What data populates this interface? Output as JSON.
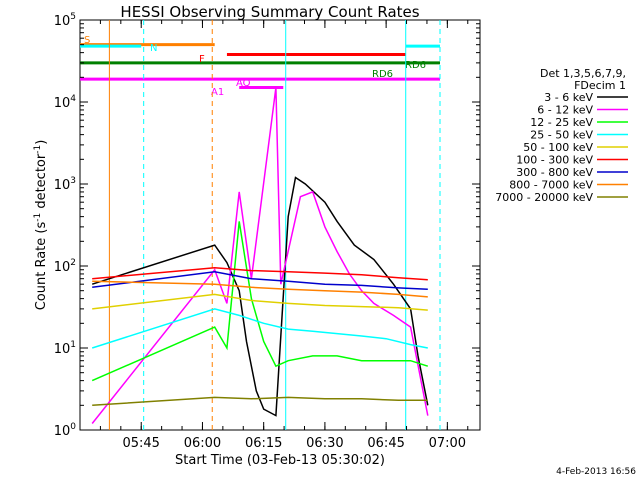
{
  "chart_data": {
    "type": "line",
    "title": "HESSI Observing Summary Count Rates",
    "xlabel": "Start Time (03-Feb-13 05:30:02)",
    "ylabel_main": "Count Rate (s",
    "ylabel_sup": "-1",
    "ylabel_rest": " detector",
    "ylabel_sup2": "-1",
    "ylabel_end": ")",
    "y_scale": "log",
    "ylim": [
      1,
      100000
    ],
    "xlim": [
      "05:30",
      "07:08"
    ],
    "x_ticks": [
      "05:45",
      "06:00",
      "06:15",
      "06:30",
      "06:45",
      "07:00"
    ],
    "y_ticks": [
      {
        "base": "10",
        "exp": "0"
      },
      {
        "base": "10",
        "exp": "1"
      },
      {
        "base": "10",
        "exp": "2"
      },
      {
        "base": "10",
        "exp": "3"
      },
      {
        "base": "10",
        "exp": "4"
      },
      {
        "base": "10",
        "exp": "5"
      }
    ],
    "legend": {
      "header1": "Det 1,3,5,6,7,9,",
      "header2": "FDecim 1",
      "placement": "right"
    },
    "series": [
      {
        "name": "3 - 6 keV",
        "color": "#000000",
        "values": [
          [
            5.55,
            60
          ],
          [
            6.05,
            180
          ],
          [
            6.1,
            110
          ],
          [
            6.15,
            50
          ],
          [
            6.18,
            12
          ],
          [
            6.22,
            3
          ],
          [
            6.25,
            1.8
          ],
          [
            6.3,
            1.5
          ],
          [
            6.35,
            400
          ],
          [
            6.38,
            1200
          ],
          [
            6.42,
            1000
          ],
          [
            6.5,
            600
          ],
          [
            6.55,
            350
          ],
          [
            6.62,
            180
          ],
          [
            6.7,
            120
          ],
          [
            6.78,
            60
          ],
          [
            6.85,
            30
          ],
          [
            6.88,
            8
          ],
          [
            6.92,
            2
          ]
        ]
      },
      {
        "name": "6 - 12 keV",
        "color": "#ff00ff",
        "values": [
          [
            5.55,
            1.2
          ],
          [
            6.05,
            90
          ],
          [
            6.1,
            35
          ],
          [
            6.15,
            800
          ],
          [
            6.2,
            70
          ],
          [
            6.3,
            15000
          ],
          [
            6.32,
            60
          ],
          [
            6.4,
            700
          ],
          [
            6.45,
            800
          ],
          [
            6.5,
            300
          ],
          [
            6.55,
            150
          ],
          [
            6.6,
            80
          ],
          [
            6.65,
            50
          ],
          [
            6.7,
            35
          ],
          [
            6.78,
            25
          ],
          [
            6.85,
            18
          ],
          [
            6.92,
            1.5
          ]
        ]
      },
      {
        "name": "12 - 25 keV",
        "color": "#00ff00",
        "values": [
          [
            5.55,
            4
          ],
          [
            6.05,
            18
          ],
          [
            6.1,
            10
          ],
          [
            6.15,
            350
          ],
          [
            6.2,
            40
          ],
          [
            6.25,
            12
          ],
          [
            6.3,
            6
          ],
          [
            6.35,
            7
          ],
          [
            6.45,
            8
          ],
          [
            6.55,
            8
          ],
          [
            6.65,
            7
          ],
          [
            6.75,
            7
          ],
          [
            6.85,
            7
          ],
          [
            6.92,
            6
          ]
        ]
      },
      {
        "name": "25 - 50 keV",
        "color": "#00ffff",
        "values": [
          [
            5.55,
            10
          ],
          [
            6.05,
            30
          ],
          [
            6.15,
            25
          ],
          [
            6.25,
            20
          ],
          [
            6.35,
            17
          ],
          [
            6.45,
            16
          ],
          [
            6.55,
            15
          ],
          [
            6.65,
            14
          ],
          [
            6.75,
            13
          ],
          [
            6.85,
            11
          ],
          [
            6.92,
            10
          ]
        ]
      },
      {
        "name": "50 - 100 keV",
        "color": "#e0d000",
        "values": [
          [
            5.55,
            30
          ],
          [
            6.05,
            45
          ],
          [
            6.2,
            38
          ],
          [
            6.35,
            35
          ],
          [
            6.5,
            33
          ],
          [
            6.65,
            32
          ],
          [
            6.8,
            31
          ],
          [
            6.92,
            29
          ]
        ]
      },
      {
        "name": "100 - 300 keV",
        "color": "#ff0000",
        "values": [
          [
            5.55,
            70
          ],
          [
            6.05,
            95
          ],
          [
            6.2,
            88
          ],
          [
            6.35,
            85
          ],
          [
            6.5,
            82
          ],
          [
            6.65,
            78
          ],
          [
            6.8,
            72
          ],
          [
            6.92,
            68
          ]
        ]
      },
      {
        "name": "300 - 800 keV",
        "color": "#0000cc",
        "values": [
          [
            5.55,
            55
          ],
          [
            6.05,
            85
          ],
          [
            6.2,
            70
          ],
          [
            6.35,
            65
          ],
          [
            6.5,
            60
          ],
          [
            6.65,
            58
          ],
          [
            6.8,
            54
          ],
          [
            6.92,
            52
          ]
        ]
      },
      {
        "name": "800 - 7000 keV",
        "color": "#ff8000",
        "values": [
          [
            5.55,
            65
          ],
          [
            6.05,
            60
          ],
          [
            6.2,
            55
          ],
          [
            6.35,
            52
          ],
          [
            6.5,
            50
          ],
          [
            6.65,
            48
          ],
          [
            6.8,
            45
          ],
          [
            6.92,
            42
          ]
        ]
      },
      {
        "name": "7000 - 20000 keV",
        "color": "#808000",
        "values": [
          [
            5.55,
            2
          ],
          [
            6.05,
            2.5
          ],
          [
            6.2,
            2.4
          ],
          [
            6.35,
            2.5
          ],
          [
            6.5,
            2.4
          ],
          [
            6.65,
            2.4
          ],
          [
            6.8,
            2.3
          ],
          [
            6.92,
            2.3
          ]
        ]
      }
    ],
    "flags": [
      {
        "label": "S",
        "color": "#ff8000",
        "x0": 5.5,
        "x1": 6.05,
        "level": 50000
      },
      {
        "label": "N",
        "color": "#00ffff",
        "x0": 5.5,
        "x1": 5.75,
        "level": 48000
      },
      {
        "label": "N",
        "color": "#00ffff",
        "x0": 6.83,
        "x1": 6.97,
        "level": 48000
      },
      {
        "label": "F",
        "color": "#ff0000",
        "x0": 6.1,
        "x1": 6.83,
        "level": 38000
      },
      {
        "label": "RD6",
        "color": "#008000",
        "x0": 5.5,
        "x1": 6.97,
        "level": 30000
      },
      {
        "label": "AQ",
        "color": "#ff00ff",
        "x0": 5.5,
        "x1": 6.97,
        "level": 19000
      },
      {
        "label": "A1",
        "color": "#ff00ff",
        "x0": 6.15,
        "x1": 6.33,
        "level": 15000
      }
    ],
    "flag_labels": [
      "S",
      "N",
      "F",
      "RD6",
      "AQ",
      "A1"
    ]
  },
  "stamp": "4-Feb-2013 16:56"
}
